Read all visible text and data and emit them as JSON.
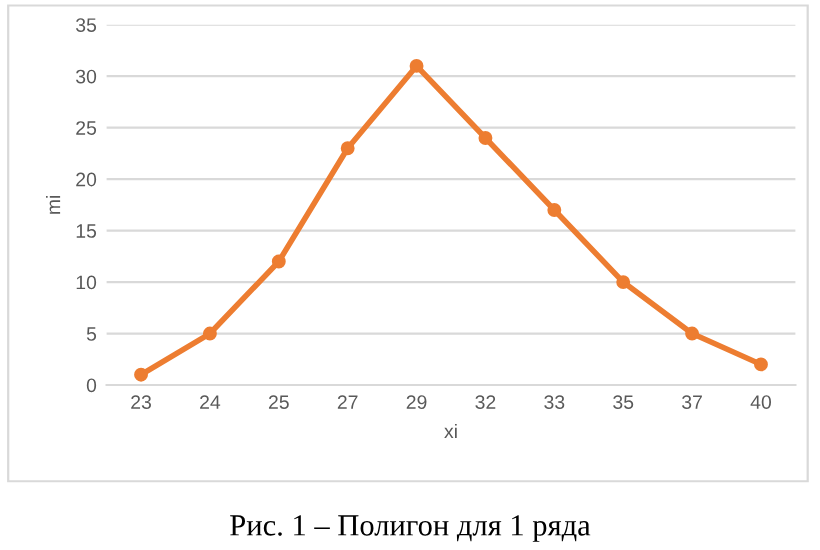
{
  "chart_data": {
    "type": "line",
    "xlabel": "xi",
    "ylabel": "mi",
    "categories": [
      "23",
      "24",
      "25",
      "27",
      "29",
      "32",
      "33",
      "35",
      "37",
      "40"
    ],
    "series": [
      {
        "color": "#ed7d31",
        "values": [
          1,
          5,
          12,
          23,
          31,
          24,
          17,
          10,
          5,
          2
        ]
      }
    ],
    "ylim": [
      0,
      35
    ],
    "yticks": [
      0,
      5,
      10,
      15,
      20,
      25,
      30,
      35
    ],
    "grid": "y",
    "marker": "circle",
    "line_style": "solid",
    "legend": false,
    "annotations": [
      "Рис. 1 – Полигон для 1 ряда"
    ]
  }
}
